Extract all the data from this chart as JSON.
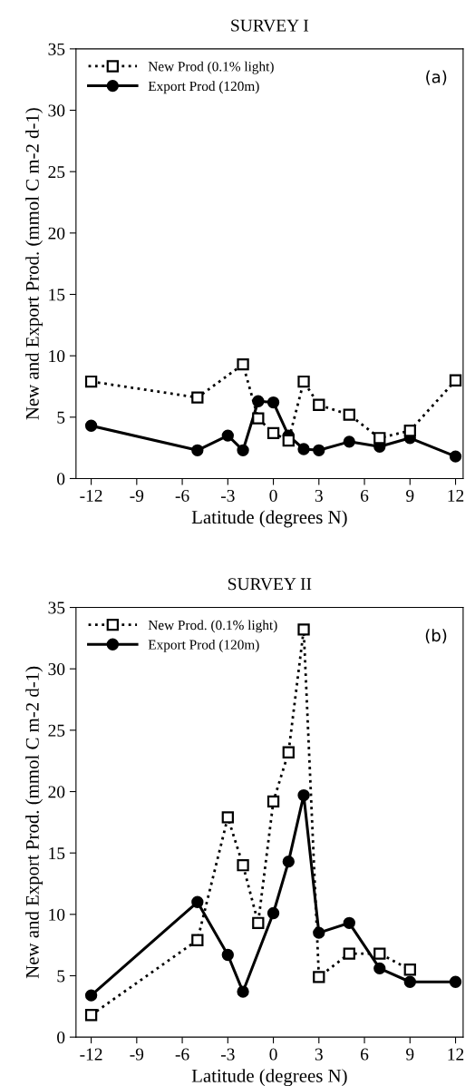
{
  "chart_data": [
    {
      "type": "line",
      "title": "SURVEY I",
      "xlabel": "Latitude (degrees N)",
      "ylabel": "New and Export Prod. (mmol C m-2 d-1)",
      "xlim": [
        -13,
        12.5
      ],
      "ylim": [
        0,
        35
      ],
      "xticks": [
        -12,
        -9,
        -6,
        -3,
        0,
        3,
        6,
        9,
        12
      ],
      "yticks": [
        0,
        5,
        10,
        15,
        20,
        25,
        30,
        35
      ],
      "grid": false,
      "legend": "top left",
      "annotations": [
        "(a)"
      ],
      "series": [
        {
          "name": "New Prod (0.1% light)",
          "color": "#000000",
          "marker": "square",
          "line_style": "dotted",
          "x": [
            -12,
            -5,
            -2,
            -1,
            0,
            1,
            2,
            3,
            5,
            7,
            9,
            12
          ],
          "values": [
            7.9,
            6.6,
            9.3,
            4.9,
            3.7,
            3.1,
            7.9,
            6.0,
            5.2,
            3.3,
            3.9,
            8.0
          ]
        },
        {
          "name": "Export Prod (120m)",
          "color": "#000000",
          "marker": "circle",
          "line_style": "solid",
          "x": [
            -12,
            -5,
            -3,
            -2,
            -1,
            0,
            1,
            2,
            3,
            5,
            7,
            9,
            12
          ],
          "values": [
            4.3,
            2.3,
            3.5,
            2.3,
            6.3,
            6.2,
            3.5,
            2.4,
            2.3,
            3.0,
            2.6,
            3.3,
            1.8
          ]
        }
      ]
    },
    {
      "type": "line",
      "title": "SURVEY II",
      "xlabel": "Latitude (degrees N)",
      "ylabel": "New and Export Prod. (mmol C m-2 d-1)",
      "xlim": [
        -13,
        12.5
      ],
      "ylim": [
        0,
        35
      ],
      "xticks": [
        -12,
        -9,
        -6,
        -3,
        0,
        3,
        6,
        9,
        12
      ],
      "yticks": [
        0,
        5,
        10,
        15,
        20,
        25,
        30,
        35
      ],
      "grid": false,
      "legend": "top left",
      "annotations": [
        "(b)"
      ],
      "series": [
        {
          "name": "New Prod. (0.1% light)",
          "color": "#000000",
          "marker": "square",
          "line_style": "dotted",
          "x": [
            -12,
            -5,
            -3,
            -2,
            -1,
            0,
            1,
            2,
            3,
            5,
            7,
            9
          ],
          "values": [
            1.8,
            7.9,
            17.9,
            14.0,
            9.3,
            19.2,
            23.2,
            33.2,
            4.9,
            6.8,
            6.8,
            5.5
          ]
        },
        {
          "name": "Export Prod (120m)",
          "color": "#000000",
          "marker": "circle",
          "line_style": "solid",
          "x": [
            -12,
            -5,
            -3,
            -2,
            0,
            1,
            2,
            3,
            5,
            7,
            9,
            12
          ],
          "values": [
            3.4,
            11.0,
            6.7,
            3.7,
            10.1,
            14.3,
            19.7,
            8.5,
            9.3,
            5.6,
            4.5,
            4.5
          ]
        }
      ]
    }
  ]
}
